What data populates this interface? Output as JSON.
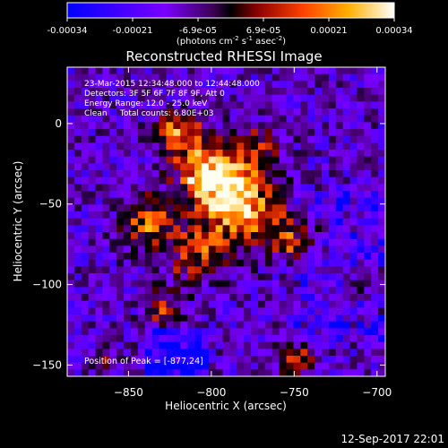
{
  "colorbar": {
    "ticks": [
      "-0.00034",
      "-0.00021",
      "-6.9e-05",
      "6.9e-05",
      "0.00021",
      "0.00034"
    ],
    "unit_prefix": "(photons cm",
    "unit_exp1": "-2",
    "unit_mid": " s",
    "unit_exp2": "-1",
    "unit_mid2": " asec",
    "unit_exp3": "-2",
    "unit_suffix": ")"
  },
  "chart_data": {
    "type": "heatmap",
    "title": "Reconstructed RHESSI Image",
    "xlabel": "Heliocentric X (arcsec)",
    "ylabel": "Heliocentric Y (arcsec)",
    "xlim": [
      -887,
      -695
    ],
    "ylim": [
      -157,
      35
    ],
    "x_ticks": [
      -850,
      -800,
      -750,
      -700
    ],
    "y_ticks": [
      0,
      -50,
      -100,
      -150
    ],
    "x_tick_labels": [
      "−850",
      "−800",
      "−750",
      "−700"
    ],
    "y_tick_labels": [
      "0",
      "−50",
      "−100",
      "−150"
    ],
    "colorbar_range": [
      -0.00034,
      0.00034
    ],
    "annotations": [
      "23-Mar-2015 12:34:48.000 to 12:44:48.000",
      "Detectors: 3F 5F 6F 7F 8F 9F, Att 0",
      "Energy Range: 12.0 - 25.0 keV",
      "Clean     Total counts: 6.80E+03"
    ],
    "peak_label": "Position of Peak = [-877,24]",
    "peak": [
      -877,
      24
    ]
  },
  "footer": {
    "timestamp": "12-Sep-2017 22:01"
  }
}
